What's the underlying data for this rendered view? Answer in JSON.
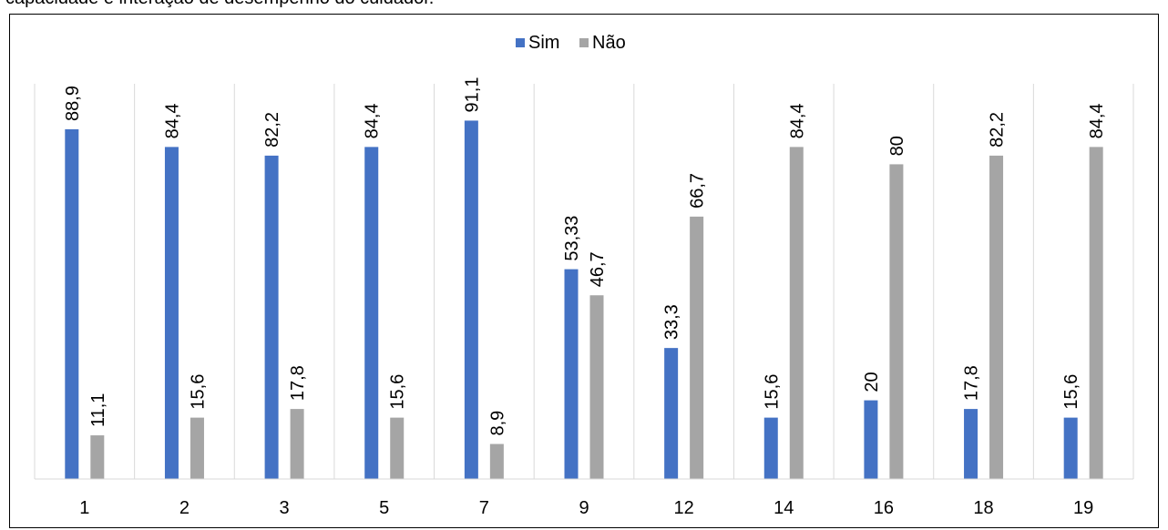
{
  "heading_fragment": "capacidade e interação de desempenho do cuidador.",
  "chart_data": {
    "type": "bar",
    "categories": [
      "1",
      "2",
      "3",
      "5",
      "7",
      "9",
      "12",
      "14",
      "16",
      "18",
      "19"
    ],
    "series": [
      {
        "name": "Sim",
        "color": "#4472C4",
        "values": [
          88.9,
          84.4,
          82.2,
          84.4,
          91.1,
          53.33,
          33.3,
          15.6,
          20,
          17.8,
          15.6
        ],
        "labels": [
          "88,9",
          "84,4",
          "82,2",
          "84,4",
          "91,1",
          "53,33",
          "33,3",
          "15,6",
          "20",
          "17,8",
          "15,6"
        ]
      },
      {
        "name": "Não",
        "color": "#A5A5A5",
        "values": [
          11.1,
          15.6,
          17.8,
          15.6,
          8.9,
          46.7,
          66.7,
          84.4,
          80,
          82.2,
          84.4
        ],
        "labels": [
          "11,1",
          "15,6",
          "17,8",
          "15,6",
          "8,9",
          "46,7",
          "66,7",
          "84,4",
          "80",
          "82,2",
          "84,4"
        ]
      }
    ],
    "ylim": [
      0,
      100
    ],
    "legend_position": "top-center",
    "grid": "vertical category separators",
    "title": "",
    "xlabel": "",
    "ylabel": ""
  }
}
